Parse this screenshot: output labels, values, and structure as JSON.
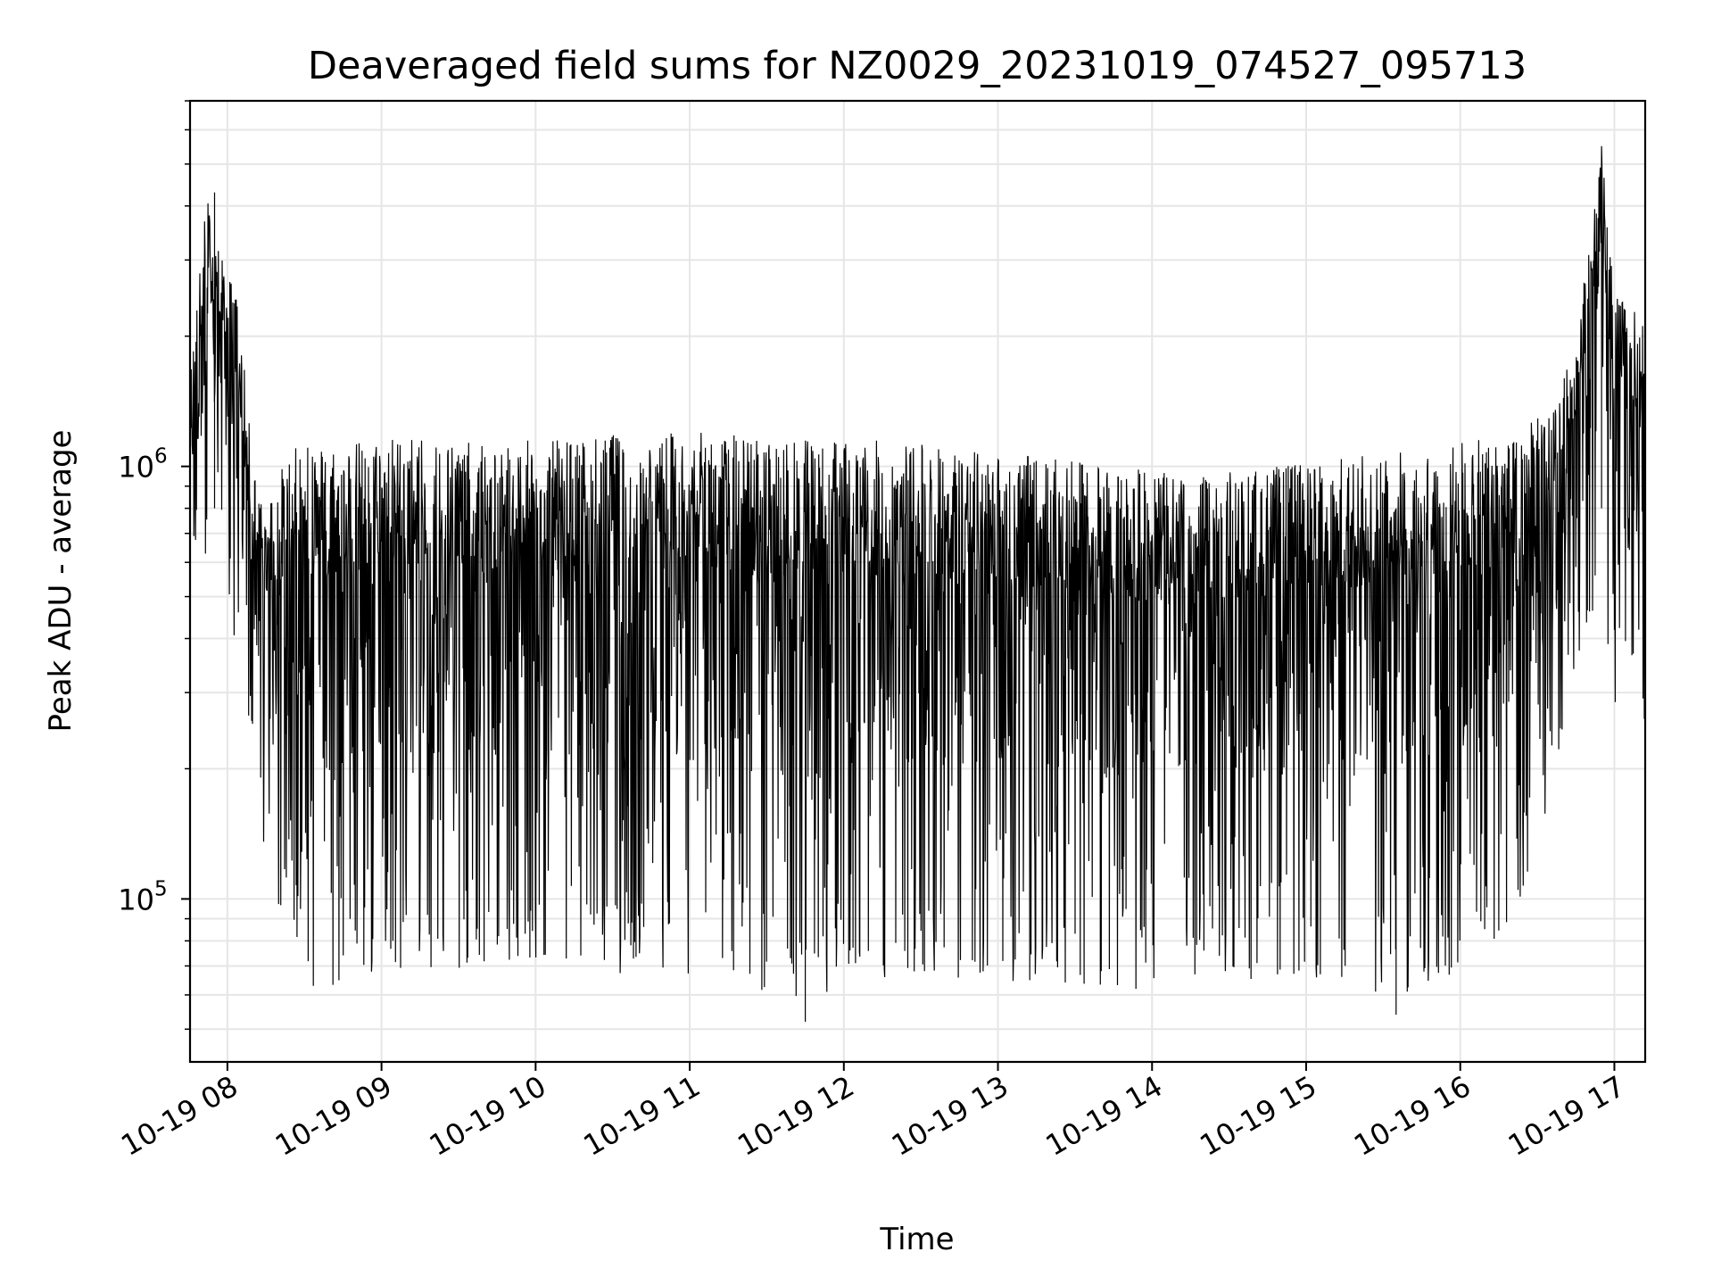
{
  "chart_data": {
    "type": "line",
    "title": "Deaveraged field sums for NZ0029_20231019_074527_095713",
    "xlabel": "Time",
    "ylabel": "Peak ADU - average",
    "x_axis_type": "date",
    "x_range": [
      "2023-10-19T07:45:27",
      "2023-10-19T17:12:00"
    ],
    "y_scale": "log",
    "ylim": [
      42000,
      7000000
    ],
    "grid": true,
    "legend": "none",
    "line_color": "#000000",
    "grid_color": "#e6e6e6",
    "x_ticks": [
      {
        "time": "2023-10-19T08:00:00",
        "label": "10-19 08"
      },
      {
        "time": "2023-10-19T09:00:00",
        "label": "10-19 09"
      },
      {
        "time": "2023-10-19T10:00:00",
        "label": "10-19 10"
      },
      {
        "time": "2023-10-19T11:00:00",
        "label": "10-19 11"
      },
      {
        "time": "2023-10-19T12:00:00",
        "label": "10-19 12"
      },
      {
        "time": "2023-10-19T13:00:00",
        "label": "10-19 13"
      },
      {
        "time": "2023-10-19T14:00:00",
        "label": "10-19 14"
      },
      {
        "time": "2023-10-19T15:00:00",
        "label": "10-19 15"
      },
      {
        "time": "2023-10-19T16:00:00",
        "label": "10-19 16"
      },
      {
        "time": "2023-10-19T17:00:00",
        "label": "10-19 17"
      }
    ],
    "y_ticks": [
      {
        "value": 100000,
        "base": "10",
        "exp": "5"
      },
      {
        "value": 1000000,
        "base": "10",
        "exp": "6"
      }
    ],
    "envelope": {
      "description_units": "time, upper bound, lower bound (Peak ADU - average)",
      "points": [
        [
          "2023-10-19T07:45:27",
          1600000,
          650000
        ],
        [
          "2023-10-19T07:52:00",
          4300000,
          600000
        ],
        [
          "2023-10-19T07:58:00",
          3000000,
          700000
        ],
        [
          "2023-10-19T08:04:00",
          2500000,
          320000
        ],
        [
          "2023-10-19T08:10:00",
          1000000,
          240000
        ],
        [
          "2023-10-19T08:15:00",
          850000,
          115000
        ],
        [
          "2023-10-19T08:25:00",
          1100000,
          80000
        ],
        [
          "2023-10-19T08:35:00",
          1150000,
          60000
        ],
        [
          "2023-10-19T08:50:00",
          1150000,
          65000
        ],
        [
          "2023-10-19T09:10:00",
          1200000,
          68000
        ],
        [
          "2023-10-19T09:40:00",
          1150000,
          68000
        ],
        [
          "2023-10-19T10:10:00",
          1150000,
          70000
        ],
        [
          "2023-10-19T10:40:00",
          1200000,
          65000
        ],
        [
          "2023-10-19T11:10:00",
          1200000,
          65000
        ],
        [
          "2023-10-19T11:45:00",
          1150000,
          52000
        ],
        [
          "2023-10-19T12:15:00",
          1150000,
          65000
        ],
        [
          "2023-10-19T12:45:00",
          1100000,
          65000
        ],
        [
          "2023-10-19T13:15:00",
          1050000,
          62000
        ],
        [
          "2023-10-19T13:45:00",
          1000000,
          60000
        ],
        [
          "2023-10-19T14:15:00",
          950000,
          65000
        ],
        [
          "2023-10-19T14:45:00",
          1000000,
          62000
        ],
        [
          "2023-10-19T15:15:00",
          1050000,
          60000
        ],
        [
          "2023-10-19T15:40:00",
          1100000,
          58000
        ],
        [
          "2023-10-19T16:00:00",
          1150000,
          65000
        ],
        [
          "2023-10-19T16:20:00",
          1150000,
          80000
        ],
        [
          "2023-10-19T16:35:00",
          1400000,
          160000
        ],
        [
          "2023-10-19T16:45:00",
          2000000,
          350000
        ],
        [
          "2023-10-19T16:55:00",
          5500000,
          500000
        ],
        [
          "2023-10-19T17:00:00",
          2500000,
          240000
        ],
        [
          "2023-10-19T17:12:00",
          2200000,
          250000
        ]
      ]
    },
    "notable_peaks": [
      {
        "time": "2023-10-19T07:55:00",
        "value": 4300000
      },
      {
        "time": "2023-10-19T16:55:00",
        "value": 5500000
      }
    ],
    "notable_minima": [
      {
        "time": "2023-10-19T11:45:00",
        "value": 52000
      },
      {
        "time": "2023-10-19T15:35:00",
        "value": 54000
      }
    ]
  }
}
